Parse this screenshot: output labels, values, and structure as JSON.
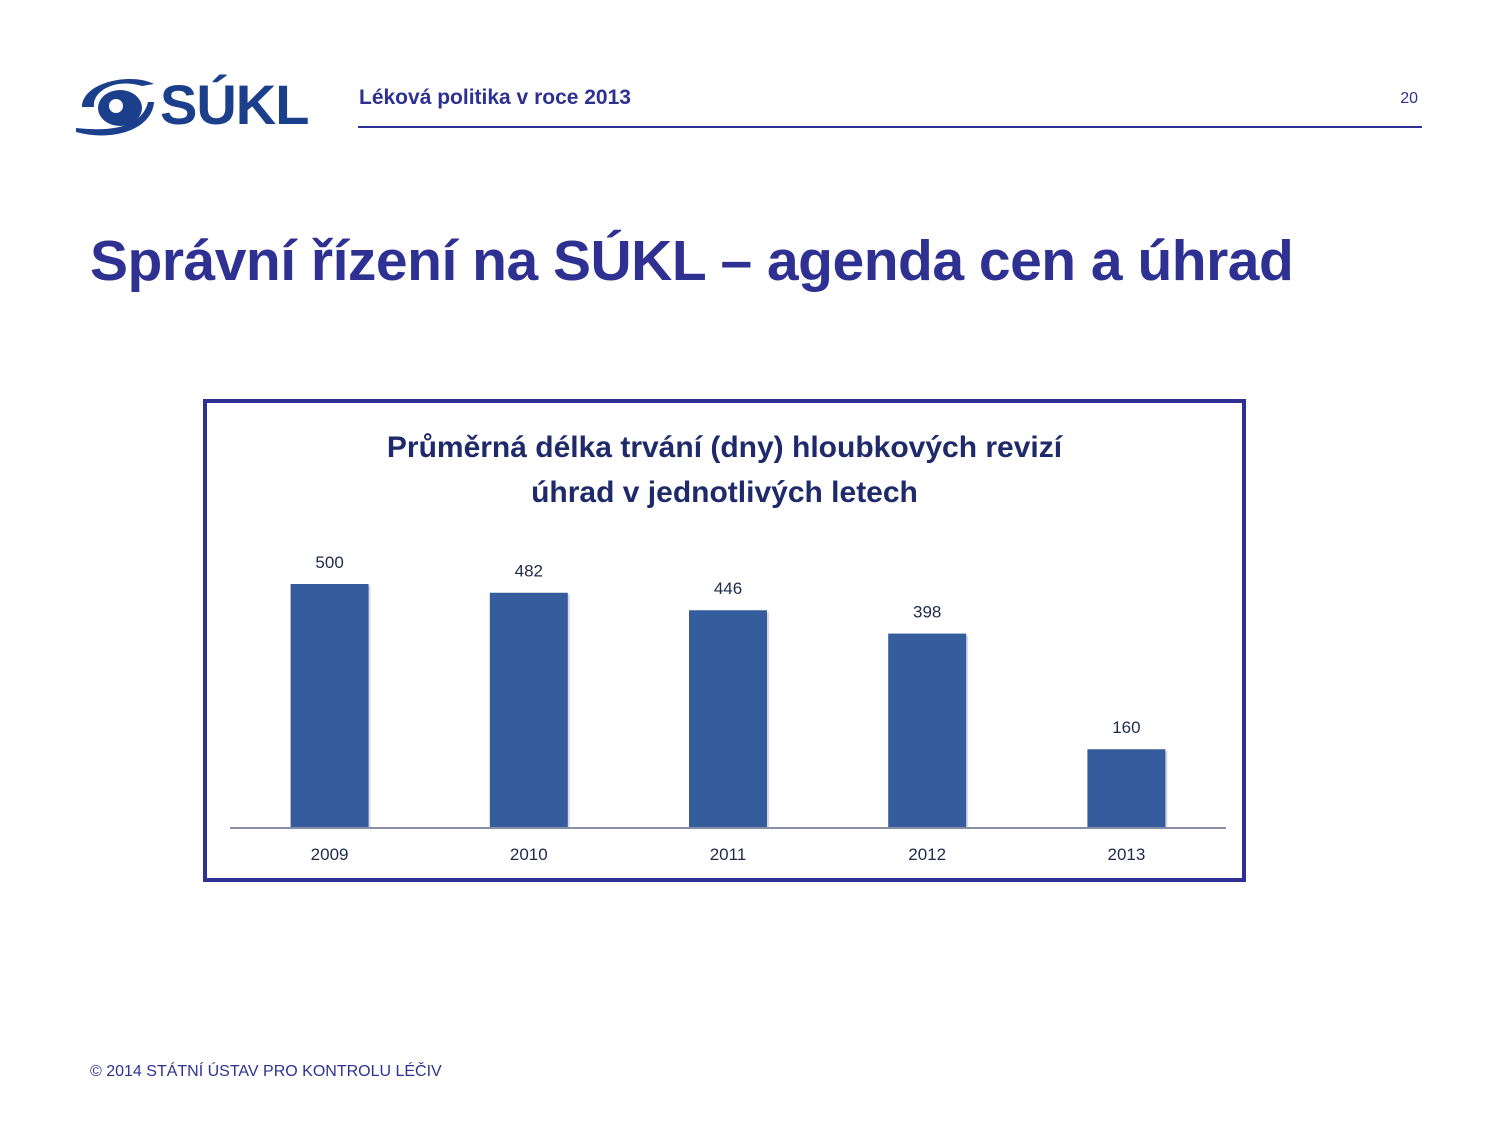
{
  "header": {
    "logo_text": "SÚKL",
    "title": "Léková politika v roce 2013",
    "page_number": "20"
  },
  "slide": {
    "title": "Správní řízení na SÚKL – agenda cen a úhrad"
  },
  "colors": {
    "accent": "#2E3192",
    "bar": "#355C9C",
    "logo": "#1B3F8B"
  },
  "chart_data": {
    "type": "bar",
    "title_line1": "Průměrná délka trvání (dny) hloubkových revizí",
    "title_line2": "úhrad v jednotlivých letech",
    "categories": [
      "2009",
      "2010",
      "2011",
      "2012",
      "2013"
    ],
    "values": [
      500,
      482,
      446,
      398,
      160
    ],
    "xlabel": "",
    "ylabel": "",
    "ylim": [
      0,
      500
    ],
    "grid": false,
    "data_labels": true
  },
  "footer": {
    "copyright": "© 2014  STÁTNÍ ÚSTAV PRO KONTROLU LÉČIV"
  }
}
